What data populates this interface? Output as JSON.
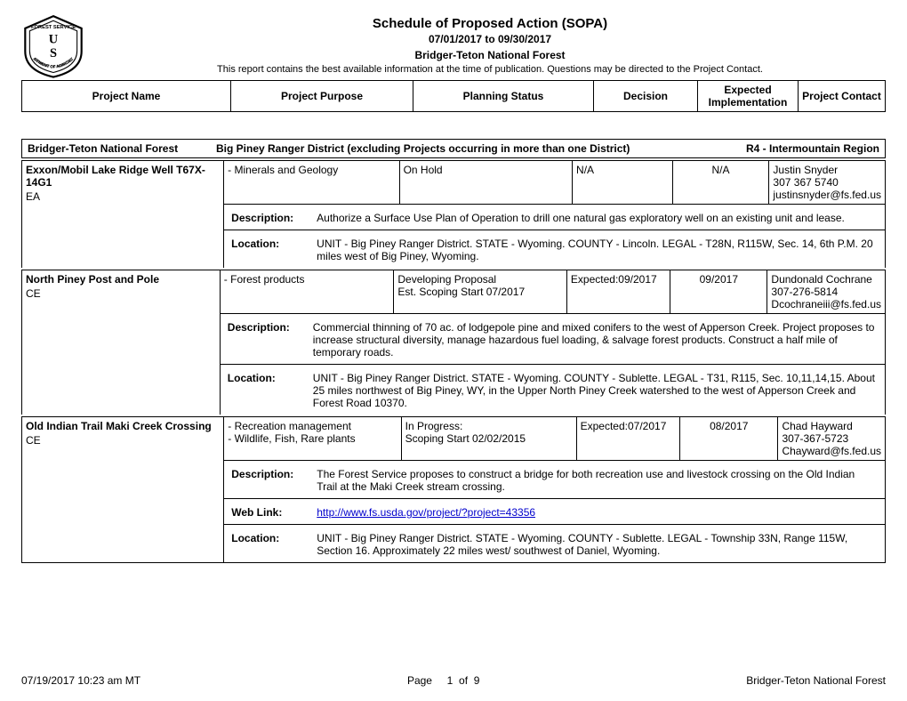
{
  "header": {
    "title": "Schedule of Proposed Action (SOPA)",
    "dateRange": "07/01/2017 to 09/30/2017",
    "forest": "Bridger-Teton National Forest",
    "disclaimer": "This report contains the best available information at the time of publication. Questions may be directed to the Project Contact."
  },
  "columns": {
    "name": "Project Name",
    "purpose": "Project Purpose",
    "status": "Planning Status",
    "decision": "Decision",
    "impl": "Expected Implementation",
    "contact": "Project Contact"
  },
  "district": {
    "forest": "Bridger-Teton National Forest",
    "name": "Big Piney Ranger District (excluding Projects occurring in more than one District)",
    "region": "R4 - Intermountain Region"
  },
  "labels": {
    "description": "Description:",
    "location": "Location:",
    "weblink": "Web Link:"
  },
  "projects": [
    {
      "name": "Exxon/Mobil Lake Ridge Well T67X-14G1",
      "docType": "EA",
      "purpose": "- Minerals and Geology",
      "status1": "On Hold",
      "status2": "",
      "decision": "N/A",
      "impl": "N/A",
      "contactName": "Justin Snyder",
      "contactPhone": "307 367 5740",
      "contactEmail": "justinsnyder@fs.fed.us",
      "description": "Authorize a Surface Use Plan of Operation to drill one natural gas exploratory well on an existing unit and lease.",
      "location": "UNIT - Big Piney Ranger District.   STATE - Wyoming.   COUNTY - Lincoln.   LEGAL - T28N, R115W, Sec. 14, 6th P.M. 20 miles west of Big Piney, Wyoming.",
      "weblink": ""
    },
    {
      "name": "North Piney Post and Pole",
      "docType": "CE",
      "purpose": "- Forest products",
      "status1": "Developing Proposal",
      "status2": "Est. Scoping Start 07/2017",
      "decision": "Expected:09/2017",
      "impl": "09/2017",
      "contactName": "Dundonald Cochrane",
      "contactPhone": "307-276-5814",
      "contactEmail": "Dcochraneiii@fs.fed.us",
      "description": "Commercial thinning of 70 ac. of lodgepole pine and mixed conifers to the west of Apperson Creek. Project proposes to increase structural diversity, manage hazardous fuel loading, & salvage forest products. Construct a half mile of temporary roads.",
      "location": "UNIT - Big Piney Ranger District.   STATE - Wyoming.   COUNTY - Sublette.   LEGAL - T31, R115, Sec. 10,11,14,15. About 25 miles northwest of Big Piney, WY, in the Upper North Piney Creek watershed to the west of Apperson Creek and Forest Road 10370.",
      "weblink": ""
    },
    {
      "name": "Old Indian Trail Maki Creek Crossing",
      "docType": "CE",
      "purpose": "- Recreation management\n- Wildlife, Fish, Rare plants",
      "status1": "In Progress:",
      "status2": "Scoping Start 02/02/2015",
      "decision": "Expected:07/2017",
      "impl": "08/2017",
      "contactName": "Chad Hayward",
      "contactPhone": "307-367-5723",
      "contactEmail": "Chayward@fs.fed.us",
      "description": "The Forest Service proposes to construct a bridge for both recreation use and livestock crossing on the Old Indian Trail at the Maki Creek stream crossing.",
      "location": "UNIT - Big Piney Ranger District.   STATE - Wyoming.   COUNTY - Sublette.   LEGAL - Township 33N, Range 115W, Section 16. Approximately 22 miles west/ southwest of Daniel, Wyoming.",
      "weblink": "http://www.fs.usda.gov/project/?project=43356"
    }
  ],
  "footer": {
    "timestamp": "07/19/2017 10:23 am MT",
    "pageLabel": "Page",
    "pageNum": "1",
    "pageOf": "of",
    "pageTotal": "9",
    "forest": "Bridger-Teton National Forest"
  }
}
